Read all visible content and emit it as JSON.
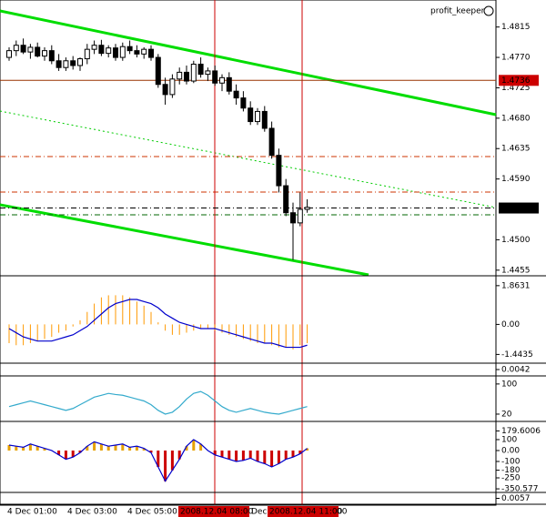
{
  "chart_data": {
    "type": "candlestick",
    "title": "profit_keeper",
    "color_up": "#ffffff",
    "color_down": "#000000",
    "open": [
      1.477,
      1.478,
      1.4788,
      1.4778,
      1.4785,
      1.4772,
      1.478,
      1.4765,
      1.4755,
      1.4765,
      1.4758,
      1.4768,
      1.4782,
      1.4788,
      1.4776,
      1.4784,
      1.477,
      1.4786,
      1.478,
      1.4775,
      1.4782,
      1.477,
      1.473,
      1.4715,
      1.4738,
      1.4748,
      1.4735,
      1.476,
      1.4745,
      1.475,
      1.4732,
      1.474,
      1.472,
      1.471,
      1.4695,
      1.4675,
      1.469,
      1.4665,
      1.4625,
      1.458,
      1.454,
      1.4525,
      1.4545
    ],
    "high": [
      1.4785,
      1.4795,
      1.4798,
      1.479,
      1.4792,
      1.4785,
      1.4788,
      1.4775,
      1.477,
      1.4772,
      1.477,
      1.479,
      1.4795,
      1.4796,
      1.4788,
      1.479,
      1.4792,
      1.4795,
      1.4788,
      1.4785,
      1.4788,
      1.4775,
      1.474,
      1.4745,
      1.4755,
      1.4758,
      1.4765,
      1.477,
      1.4755,
      1.4758,
      1.4745,
      1.4748,
      1.473,
      1.472,
      1.4705,
      1.4695,
      1.4698,
      1.4675,
      1.4635,
      1.459,
      1.4555,
      1.457,
      1.456
    ],
    "low": [
      1.4765,
      1.4772,
      1.4775,
      1.4768,
      1.477,
      1.4765,
      1.476,
      1.475,
      1.475,
      1.4752,
      1.475,
      1.476,
      1.4775,
      1.4772,
      1.477,
      1.4765,
      1.4765,
      1.4775,
      1.477,
      1.4768,
      1.4765,
      1.4725,
      1.47,
      1.471,
      1.473,
      1.473,
      1.4732,
      1.474,
      1.4735,
      1.4728,
      1.472,
      1.4715,
      1.47,
      1.469,
      1.467,
      1.467,
      1.466,
      1.462,
      1.457,
      1.4535,
      1.447,
      1.452,
      1.454
    ],
    "close": [
      1.478,
      1.4788,
      1.4778,
      1.4785,
      1.4772,
      1.478,
      1.4765,
      1.4755,
      1.4765,
      1.4758,
      1.4768,
      1.4782,
      1.4788,
      1.4776,
      1.4784,
      1.477,
      1.4786,
      1.478,
      1.4775,
      1.4782,
      1.477,
      1.473,
      1.4715,
      1.4738,
      1.4748,
      1.4735,
      1.476,
      1.4745,
      1.475,
      1.4732,
      1.474,
      1.472,
      1.471,
      1.4695,
      1.4675,
      1.469,
      1.4665,
      1.4625,
      1.458,
      1.454,
      1.4525,
      1.4545,
      1.4548
    ],
    "ylim": [
      1.4448,
      1.4855
    ],
    "yticks": [
      1.4815,
      {
        "value": 1.477,
        "label": "1.4770"
      },
      1.4725,
      {
        "value": 1.468,
        "label": "1.4680"
      },
      1.4635,
      {
        "value": 1.459,
        "label": "1.4590"
      },
      {
        "value": 1.45,
        "label": "1.4500"
      },
      1.4455
    ],
    "level": 1.4736,
    "current_price": 1.4547,
    "time_labels": [
      "4 Dec 01:00",
      "4 Dec 03:00",
      "4 Dec 05:00",
      "2008.12.04 08:00",
      "Dec",
      "2008.12.04 11:00",
      "00"
    ],
    "indicators": [
      {
        "type": "macd",
        "ylim": [
          -1.82,
          2.25
        ],
        "yticks": [
          1.8631,
          {
            "value": 0,
            "label": "0.00"
          },
          -1.4435
        ],
        "histogram": [
          -0.9,
          -1.0,
          -1.0,
          -0.9,
          -0.8,
          -0.7,
          -0.6,
          -0.4,
          -0.3,
          -0.1,
          0.2,
          0.6,
          1.0,
          1.3,
          1.4,
          1.4,
          1.4,
          1.3,
          1.1,
          0.9,
          0.6,
          0.1,
          -0.3,
          -0.5,
          -0.5,
          -0.4,
          -0.3,
          -0.2,
          -0.2,
          -0.3,
          -0.4,
          -0.5,
          -0.6,
          -0.7,
          -0.8,
          -0.9,
          -0.9,
          -1.0,
          -1.1,
          -1.1,
          -1.2,
          -1.0,
          -0.9
        ],
        "signal": [
          -0.2,
          -0.4,
          -0.6,
          -0.7,
          -0.8,
          -0.8,
          -0.8,
          -0.7,
          -0.6,
          -0.5,
          -0.3,
          -0.1,
          0.2,
          0.5,
          0.8,
          1.0,
          1.1,
          1.2,
          1.2,
          1.1,
          1.0,
          0.8,
          0.5,
          0.3,
          0.1,
          0,
          -0.1,
          -0.2,
          -0.2,
          -0.2,
          -0.3,
          -0.4,
          -0.5,
          -0.6,
          -0.7,
          -0.8,
          -0.9,
          -0.9,
          -1.0,
          -1.1,
          -1.1,
          -1.1,
          -1.0
        ],
        "hist_color": "#ff9900",
        "signal_color": "#0000cc"
      },
      {
        "type": "flat",
        "ylim": [
          0,
          1
        ],
        "yticks": [
          {
            "value": 0.5,
            "label": "0.0042"
          }
        ]
      },
      {
        "type": "oscillator",
        "ylim": [
          3,
          119
        ],
        "yticks": [
          100,
          20
        ],
        "values": [
          40,
          45,
          50,
          55,
          50,
          45,
          40,
          35,
          30,
          35,
          45,
          55,
          65,
          70,
          75,
          72,
          70,
          65,
          60,
          55,
          45,
          30,
          20,
          25,
          40,
          60,
          75,
          80,
          70,
          55,
          40,
          30,
          25,
          30,
          35,
          30,
          25,
          22,
          20,
          25,
          30,
          35,
          40
        ],
        "line_color": "#33aacc"
      },
      {
        "type": "histogram",
        "ylim": [
          -375,
          258
        ],
        "yticks": [
          179.6006,
          100,
          {
            "value": 0,
            "label": "0.00"
          },
          -100,
          -180,
          -250,
          -350.577
        ],
        "values": [
          50,
          40,
          30,
          60,
          40,
          20,
          0,
          -40,
          -80,
          -60,
          -20,
          40,
          80,
          60,
          40,
          50,
          60,
          30,
          40,
          20,
          -20,
          -150,
          -280,
          -180,
          -80,
          40,
          100,
          60,
          0,
          -40,
          -60,
          -80,
          -100,
          -90,
          -70,
          -100,
          -120,
          -150,
          -120,
          -80,
          -60,
          -30,
          20
        ],
        "color_up": "#e6a000",
        "color_down": "#cc0000",
        "line_color": "#0000cc"
      },
      {
        "type": "flat",
        "ylim": [
          0,
          1
        ],
        "yticks": [
          {
            "value": 0.5,
            "label": "0.0057"
          }
        ]
      }
    ]
  }
}
